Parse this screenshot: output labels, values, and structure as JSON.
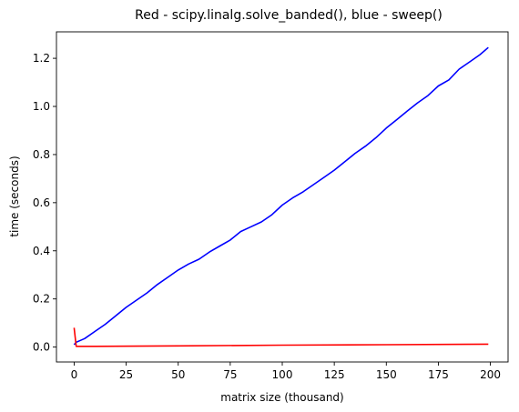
{
  "chart_data": {
    "type": "line",
    "title": "Red - scipy.linalg.solve_banded(), blue - sweep()",
    "xlabel": "matrix size (thousand)",
    "ylabel": "time (seconds)",
    "xlim": [
      -8.5,
      208.5
    ],
    "ylim": [
      -0.062,
      1.31
    ],
    "xticks": [
      0,
      25,
      50,
      75,
      100,
      125,
      150,
      175,
      200
    ],
    "yticks": [
      0.0,
      0.2,
      0.4,
      0.6,
      0.8,
      1.0,
      1.2
    ],
    "xtick_labels": [
      "0",
      "25",
      "50",
      "75",
      "100",
      "125",
      "150",
      "175",
      "200"
    ],
    "ytick_labels": [
      "0.0",
      "0.2",
      "0.4",
      "0.6",
      "0.8",
      "1.0",
      "1.2"
    ],
    "grid": false,
    "legend": "none",
    "series": [
      {
        "color": "#0000ff",
        "x": [
          0,
          1,
          5,
          10,
          15,
          20,
          25,
          30,
          35,
          40,
          45,
          50,
          55,
          60,
          65,
          70,
          75,
          80,
          85,
          90,
          95,
          100,
          105,
          110,
          115,
          120,
          125,
          130,
          135,
          140,
          145,
          150,
          155,
          160,
          165,
          170,
          175,
          180,
          185,
          190,
          195,
          199
        ],
        "y": [
          0.01,
          0.02,
          0.035,
          0.065,
          0.095,
          0.13,
          0.165,
          0.195,
          0.225,
          0.26,
          0.29,
          0.32,
          0.345,
          0.365,
          0.395,
          0.42,
          0.445,
          0.48,
          0.5,
          0.52,
          0.55,
          0.59,
          0.62,
          0.645,
          0.675,
          0.705,
          0.735,
          0.77,
          0.805,
          0.835,
          0.87,
          0.91,
          0.945,
          0.98,
          1.015,
          1.045,
          1.085,
          1.11,
          1.155,
          1.185,
          1.215,
          1.245
        ]
      },
      {
        "color": "#ff0000",
        "x": [
          0,
          1,
          10,
          50,
          100,
          150,
          199
        ],
        "y": [
          0.08,
          0.003,
          0.003,
          0.005,
          0.008,
          0.01,
          0.012
        ]
      }
    ]
  }
}
